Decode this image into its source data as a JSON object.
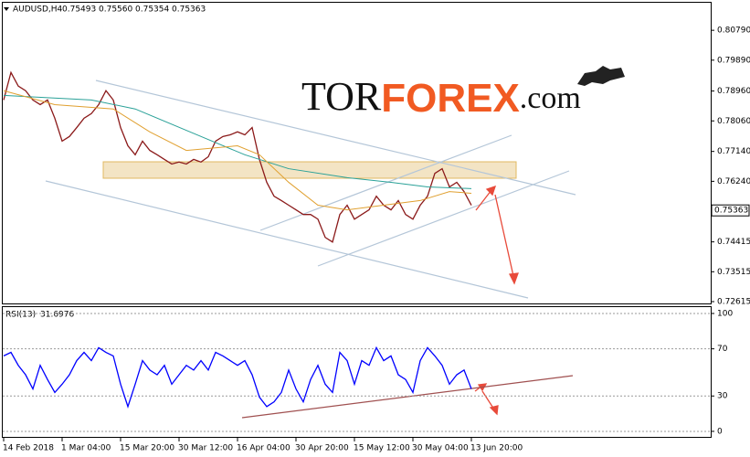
{
  "header": {
    "symbol": "AUDUSD,H4",
    "ohlc": [
      "0.75493",
      "0.75560",
      "0.75354",
      "0.75363"
    ]
  },
  "logo": {
    "part1": "TOR",
    "part2": "FOREX",
    "part3": ".com"
  },
  "chart_data": [
    {
      "type": "line",
      "ylim": [
        0.7256,
        0.8162
      ],
      "yticks": [
        {
          "value": 0.8079,
          "label": "0.80790"
        },
        {
          "value": 0.7989,
          "label": "0.79890"
        },
        {
          "value": 0.7896,
          "label": "0.78960"
        },
        {
          "value": 0.7806,
          "label": "0.78060"
        },
        {
          "value": 0.7714,
          "label": "0.77140"
        },
        {
          "value": 0.7624,
          "label": "0.76240"
        },
        0.74415,
        0.73515,
        0.72615
      ],
      "last": 0.75363,
      "grid": false,
      "series": [
        {
          "color": "#8b1a1a",
          "x": [
            0,
            1,
            2,
            3,
            4,
            5,
            6,
            7,
            8,
            9,
            10,
            11,
            12,
            13,
            14,
            15,
            16,
            17,
            18,
            19,
            20,
            21,
            22,
            23,
            24,
            25,
            26,
            27,
            28,
            29,
            30,
            31,
            32,
            33,
            34,
            35,
            36,
            37,
            38,
            39,
            40,
            41,
            42,
            43,
            44,
            45,
            46,
            47,
            48,
            49,
            50,
            51,
            52,
            53,
            54,
            55,
            56,
            57,
            58,
            59,
            60,
            61,
            62,
            63,
            64
          ],
          "values": [
            0.7869,
            0.7952,
            0.7911,
            0.7897,
            0.7869,
            0.7855,
            0.7869,
            0.7814,
            0.7745,
            0.7759,
            0.7786,
            0.7814,
            0.7828,
            0.7855,
            0.7897,
            0.7869,
            0.7786,
            0.7731,
            0.7704,
            0.7745,
            0.7717,
            0.7704,
            0.769,
            0.7676,
            0.7682,
            0.7676,
            0.769,
            0.7682,
            0.7698,
            0.7745,
            0.7759,
            0.7764,
            0.7773,
            0.7764,
            0.7786,
            0.769,
            0.7621,
            0.7579,
            0.7566,
            0.7552,
            0.7538,
            0.7524,
            0.7524,
            0.751,
            0.7455,
            0.7441,
            0.7524,
            0.7552,
            0.751,
            0.7524,
            0.7538,
            0.7579,
            0.7552,
            0.7538,
            0.7566,
            0.7524,
            0.751,
            0.7552,
            0.7579,
            0.7648,
            0.7662,
            0.7607,
            0.7621,
            0.7593,
            0.7552
          ]
        },
        {
          "color": "#2aa198",
          "x": [
            0,
            12,
            18,
            27,
            33,
            39,
            47,
            53,
            58,
            64
          ],
          "values": [
            0.7883,
            0.7869,
            0.7842,
            0.7759,
            0.7704,
            0.7662,
            0.7635,
            0.7621,
            0.7607,
            0.7602
          ]
        },
        {
          "color": "#e0a030",
          "x": [
            0,
            7,
            15,
            20,
            25,
            32,
            35,
            39,
            43,
            47,
            52,
            57,
            61,
            64
          ],
          "values": [
            0.7897,
            0.7855,
            0.7842,
            0.7773,
            0.7717,
            0.7731,
            0.7704,
            0.7621,
            0.7552,
            0.7538,
            0.7552,
            0.7566,
            0.7593,
            0.7588
          ]
        }
      ]
    },
    {
      "type": "line",
      "label": "RSI(13)",
      "last": "31.6976",
      "ylim": [
        -4.7,
        105.4
      ],
      "yticks": [
        0,
        30,
        70,
        100
      ],
      "grid": true,
      "categories": [
        "14 Feb 2018",
        null,
        null,
        null,
        null,
        null,
        null,
        null,
        "1 Mar 04:00",
        null,
        null,
        null,
        null,
        null,
        null,
        null,
        "15 Mar 20:00",
        null,
        null,
        null,
        null,
        null,
        null,
        null,
        "30 Mar 12:00",
        null,
        null,
        null,
        null,
        null,
        null,
        null,
        "16 Apr 04:00",
        null,
        null,
        null,
        null,
        null,
        null,
        null,
        "30 Apr 20:00",
        null,
        null,
        null,
        null,
        null,
        null,
        null,
        "15 May 12:00",
        null,
        null,
        null,
        null,
        null,
        null,
        null,
        "30 May 04:00",
        null,
        null,
        null,
        null,
        null,
        null,
        null,
        "13 Jun 20:00"
      ],
      "series": [
        {
          "color": "#0000ff",
          "x": [
            0,
            1,
            2,
            3,
            4,
            5,
            6,
            7,
            8,
            9,
            10,
            11,
            12,
            13,
            14,
            15,
            16,
            17,
            18,
            19,
            20,
            21,
            22,
            23,
            24,
            25,
            26,
            27,
            28,
            29,
            30,
            31,
            32,
            33,
            34,
            35,
            36,
            37,
            38,
            39,
            40,
            41,
            42,
            43,
            44,
            45,
            46,
            47,
            48,
            49,
            50,
            51,
            52,
            53,
            54,
            55,
            56,
            57,
            58,
            59,
            60,
            61,
            62,
            63,
            64
          ],
          "values": [
            64,
            67,
            56,
            48,
            36,
            56,
            44,
            33,
            40,
            48,
            60,
            67,
            60,
            71,
            67,
            64,
            40,
            21,
            40,
            60,
            52,
            48,
            56,
            40,
            48,
            56,
            52,
            60,
            52,
            67,
            64,
            60,
            56,
            60,
            48,
            29,
            21,
            25,
            33,
            52,
            36,
            25,
            44,
            56,
            40,
            33,
            67,
            60,
            40,
            60,
            56,
            71,
            60,
            64,
            48,
            44,
            33,
            60,
            71,
            64,
            56,
            40,
            48,
            52,
            36
          ]
        }
      ]
    }
  ]
}
